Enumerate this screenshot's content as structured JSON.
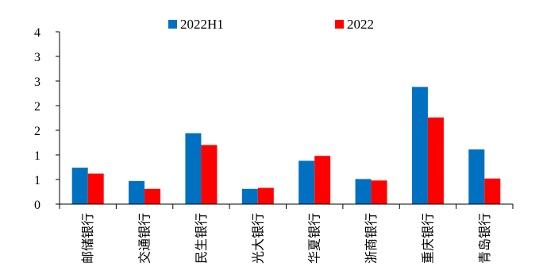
{
  "chart_data": {
    "type": "bar",
    "title": "",
    "xlabel": "",
    "ylabel": "",
    "categories": [
      "邮储银行",
      "交通银行",
      "民生银行",
      "光大银行",
      "华夏银行",
      "浙商银行",
      "重庆银行",
      "青岛银行"
    ],
    "series": [
      {
        "name": "2022H1",
        "color": "#0070C0",
        "values": [
          0.74,
          0.47,
          1.44,
          0.31,
          0.88,
          0.51,
          2.38,
          1.11
        ]
      },
      {
        "name": "2022",
        "color": "#FF0000",
        "values": [
          0.62,
          0.31,
          1.2,
          0.33,
          0.98,
          0.48,
          1.76,
          0.52
        ]
      }
    ],
    "ylim": [
      0,
      3.5
    ],
    "y_ticks": [
      0,
      0.5,
      1,
      1.5,
      2,
      2.5,
      3,
      3.5
    ],
    "y_tick_labels": [
      "0",
      "1",
      "1",
      "2",
      "2",
      "3",
      "3",
      "4"
    ],
    "legend_position": "top-center",
    "grid": false
  }
}
